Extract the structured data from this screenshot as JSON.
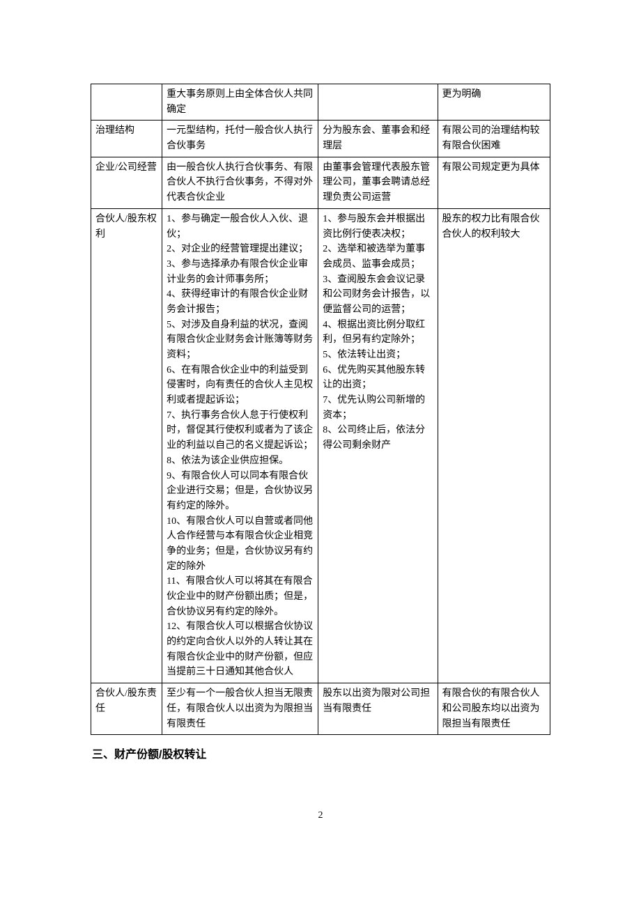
{
  "table": {
    "columns_pct": [
      15.5,
      34,
      26,
      24.5
    ],
    "border_color": "#000000",
    "font_size": 14,
    "rows": [
      {
        "c1": "",
        "c2": "重大事务原则上由全体合伙人共同确定",
        "c3": "",
        "c4": "更为明确"
      },
      {
        "c1": "治理结构",
        "c2": "一元型结构，托付一般合伙人执行合伙事务",
        "c3": "分为股东会、董事会和经理层",
        "c4": "有限公司的治理结构较有限合伙困难"
      },
      {
        "c1": "企业/公司经营",
        "c2": "由一般合伙人执行合伙事务、有限合伙人不执行合伙事务，不得对外代表合伙企业",
        "c3": "由董事会管理代表股东管理公司，董事会聘请总经理负责公司运营",
        "c4": "有限公司规定更为具体"
      },
      {
        "c1": "合伙人/股东权利",
        "c2": "1、参与确定一般合伙人入伙、退伙；\n2、对企业的经营管理提出建议；\n3、参与选择承办有限合伙企业审计业务的会计师事务所；\n4、获得经审计的有限合伙企业财务会计报告；\n5、对涉及自身利益的状况，查阅有限合伙企业财务会计账簿等财务资料；\n6、在有限合伙企业中的利益受到侵害时，向有责任的合伙人主见权利或者提起诉讼；\n7、执行事务合伙人怠于行使权利时，督促其行使权利或者为了该企业的利益以自己的名义提起诉讼；\n8、依法为该企业供应担保。\n9、有限合伙人可以同本有限合伙企业进行交易；但是，合伙协议另有约定的除外。\n10、有限合伙人可以自营或者同他人合作经营与本有限合伙企业相竞争的业务；但是，合伙协议另有约定的除外\n11、有限合伙人可以将其在有限合伙企业中的财产份额出质；但是，合伙协议另有约定的除外。\n12、有限合伙人可以根据合伙协议的约定向合伙人以外的人转让其在有限合伙企业中的财产份额，但应当提前三十日通知其他合伙人",
        "c3": "1、参与股东会并根据出资比例行使表决权；\n2、选举和被选举为董事会成员、监事会成员；\n3、查阅股东会会议记录和公司财务会计报告，以便监督公司的运营；\n4、根据出资比例分取红利，但另有约定除外；\n5、依法转让出资；\n6、优先购买其他股东转让的出资；\n7、优先认购公司新增的资本；\n8、公司终止后，依法分得公司剩余财产",
        "c4": "股东的权力比有限合伙合伙人的权利较大"
      },
      {
        "c1": "合伙人/股东责任",
        "c2": "至少有一个一般合伙人担当无限责任，有限合伙人以出资为为限担当有限责任",
        "c3": "股东以出资为限对公司担当有限责任",
        "c4": "有限合伙的有限合伙人和公司股东均以出资为限担当有限责任"
      }
    ]
  },
  "section_heading": "三、财产份额/股权转让",
  "page_number": "2"
}
